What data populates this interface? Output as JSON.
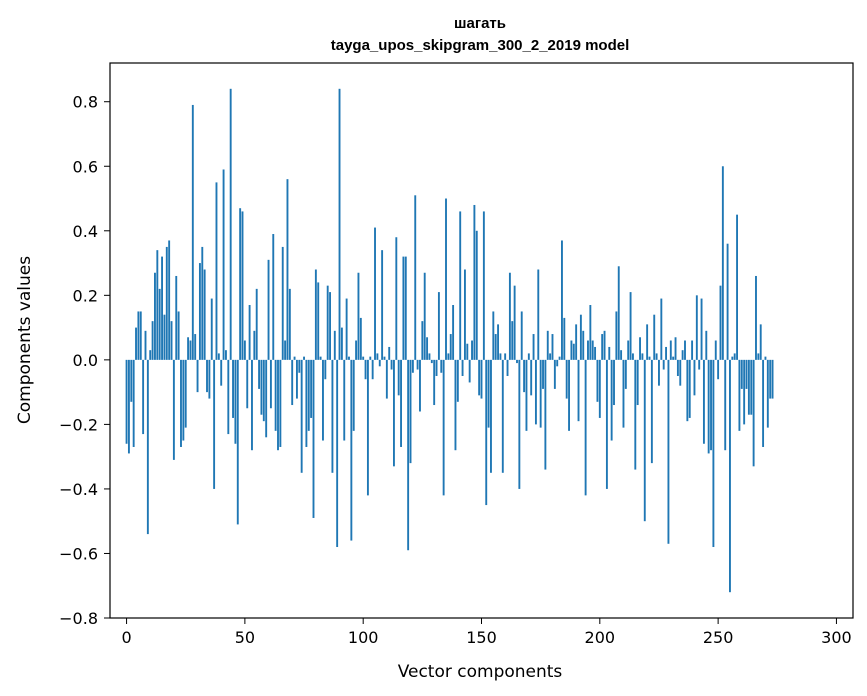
{
  "chart_data": {
    "type": "bar",
    "title": "шагать",
    "subtitle": "tayga_upos_skipgram_300_2_2019 model",
    "xlabel": "Vector components",
    "ylabel": "Components values",
    "xlim": [
      -7,
      307
    ],
    "ylim": [
      -0.8,
      0.92
    ],
    "xticks": [
      0,
      50,
      100,
      150,
      200,
      250,
      300
    ],
    "xtick_labels": [
      "0",
      "50",
      "100",
      "150",
      "200",
      "250",
      "300"
    ],
    "yticks": [
      -0.8,
      -0.6,
      -0.4,
      -0.2,
      0.0,
      0.2,
      0.4,
      0.6,
      0.8
    ],
    "ytick_labels": [
      "−0.8",
      "−0.6",
      "−0.4",
      "−0.2",
      "0.0",
      "0.2",
      "0.4",
      "0.6",
      "0.8"
    ],
    "bar_color": "#1f77b4",
    "values": [
      -0.26,
      -0.29,
      -0.13,
      -0.27,
      0.1,
      0.15,
      0.15,
      -0.23,
      0.09,
      -0.54,
      0.03,
      0.12,
      0.27,
      0.34,
      0.22,
      0.32,
      0.14,
      0.35,
      0.37,
      0.12,
      -0.31,
      0.26,
      0.15,
      -0.27,
      -0.25,
      -0.21,
      0.07,
      0.06,
      0.79,
      0.08,
      -0.1,
      0.3,
      0.35,
      0.28,
      -0.1,
      -0.12,
      0.19,
      -0.4,
      0.55,
      0.02,
      -0.08,
      0.59,
      0.03,
      -0.23,
      0.84,
      -0.18,
      -0.26,
      -0.51,
      0.47,
      0.46,
      0.06,
      -0.15,
      0.17,
      -0.28,
      0.09,
      0.22,
      -0.09,
      -0.17,
      -0.19,
      -0.24,
      0.31,
      -0.15,
      0.39,
      -0.22,
      -0.28,
      -0.27,
      0.35,
      0.06,
      0.56,
      0.22,
      -0.14,
      0.01,
      -0.12,
      -0.04,
      -0.35,
      0.01,
      -0.27,
      -0.22,
      -0.18,
      -0.49,
      0.28,
      0.24,
      0.01,
      -0.25,
      -0.06,
      0.23,
      0.21,
      -0.35,
      0.09,
      -0.58,
      0.84,
      0.1,
      -0.25,
      0.19,
      0.01,
      -0.56,
      -0.22,
      0.06,
      0.27,
      0.13,
      0.01,
      -0.06,
      -0.42,
      0.01,
      -0.06,
      0.41,
      0.02,
      -0.02,
      0.34,
      0.01,
      -0.12,
      0.04,
      -0.03,
      -0.33,
      0.38,
      -0.11,
      -0.27,
      0.32,
      0.32,
      -0.59,
      -0.32,
      -0.04,
      0.51,
      -0.03,
      -0.16,
      0.12,
      0.27,
      0.07,
      0.02,
      -0.01,
      -0.14,
      -0.05,
      0.21,
      -0.04,
      -0.42,
      0.5,
      0.02,
      0.08,
      0.17,
      -0.28,
      -0.13,
      0.46,
      -0.05,
      0.28,
      0.05,
      -0.07,
      0.06,
      0.48,
      0.4,
      -0.11,
      -0.12,
      0.46,
      -0.45,
      -0.21,
      -0.35,
      0.15,
      0.08,
      0.11,
      0.02,
      -0.35,
      0.02,
      -0.05,
      0.27,
      0.12,
      0.23,
      -0.01,
      -0.4,
      0.15,
      -0.1,
      -0.22,
      0.02,
      -0.11,
      0.08,
      -0.2,
      0.28,
      -0.21,
      -0.09,
      -0.34,
      0.09,
      0.02,
      0.08,
      -0.09,
      -0.02,
      0.01,
      0.37,
      0.13,
      -0.12,
      -0.22,
      0.06,
      0.05,
      0.11,
      -0.19,
      0.14,
      0.09,
      -0.42,
      0.06,
      0.17,
      0.06,
      0.04,
      -0.13,
      -0.18,
      0.08,
      0.09,
      -0.4,
      0.04,
      -0.25,
      -0.14,
      0.15,
      0.29,
      0.03,
      -0.21,
      -0.09,
      0.06,
      0.21,
      0.02,
      -0.34,
      -0.14,
      0.07,
      0.02,
      -0.5,
      0.11,
      0.01,
      -0.32,
      0.14,
      0.02,
      -0.08,
      0.19,
      -0.03,
      0.04,
      -0.57,
      0.06,
      0.01,
      0.07,
      -0.05,
      -0.08,
      0.03,
      0.06,
      -0.19,
      -0.18,
      0.06,
      -0.11,
      0.2,
      -0.03,
      0.19,
      -0.26,
      0.09,
      -0.29,
      -0.28,
      -0.58,
      0.06,
      -0.06,
      0.23,
      0.6,
      -0.28,
      0.36,
      -0.72,
      0.01,
      0.02,
      0.45,
      -0.22,
      -0.09,
      -0.2,
      -0.09,
      -0.17,
      -0.17,
      -0.33,
      0.26,
      0.02,
      0.11,
      -0.27,
      0.01,
      -0.21,
      -0.12,
      -0.12
    ]
  }
}
